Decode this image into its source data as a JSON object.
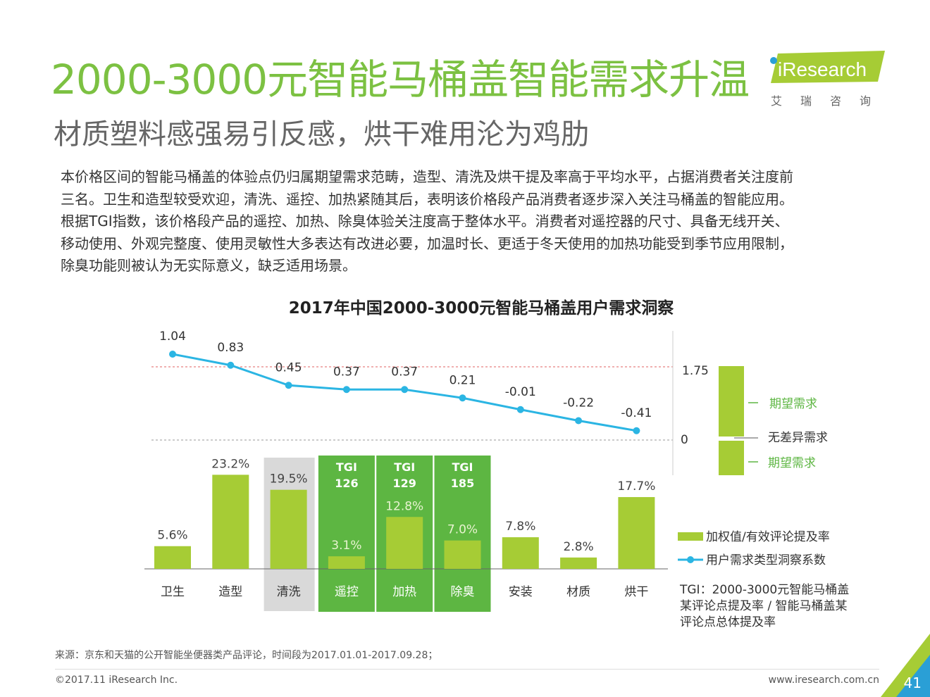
{
  "header": {
    "title": "2000-3000元智能马桶盖智能需求升温",
    "subtitle": "材质塑料感强易引反感，烘干难用沦为鸡肋",
    "logo_text": "iResearch",
    "logo_cn": "艾瑞咨询"
  },
  "body_paragraph": [
    "本价格区间的智能马桶盖的体验点仍归属期望需求范畴，造型、清洗及烘干提及率高于平均水平，占据消费者关注度前",
    "三名。卫生和造型较受欢迎，清洗、遥控、加热紧随其后，表明该价格段产品消费者逐步深入关注马桶盖的智能应用。",
    "根据TGI指数，该价格段产品的遥控、加热、除臭体验关注度高于整体水平。消费者对遥控器的尺寸、具备无线开关、",
    "移动使用、外观完整度、使用灵敏性大多表达有改进必要，加温时长、更适于冬天使用的加热功能受到季节应用限制，",
    "除臭功能则被认为无实际意义，缺乏适用场景。"
  ],
  "chart_data": {
    "type": "bar",
    "title": "2017年中国2000-3000元智能马桶盖用户需求洞察",
    "categories": [
      "卫生",
      "造型",
      "清洗",
      "遥控",
      "加热",
      "除臭",
      "安装",
      "材质",
      "烘干"
    ],
    "series": [
      {
        "name": "加权值/有效评论提及率",
        "type": "bar",
        "values": [
          5.6,
          23.2,
          19.5,
          3.1,
          12.8,
          7.0,
          7.8,
          2.8,
          17.7
        ],
        "labels": [
          "5.6%",
          "23.2%",
          "19.5%",
          "3.1%",
          "12.8%",
          "7.0%",
          "7.8%",
          "2.8%",
          "17.7%"
        ],
        "color": "#a6cc35"
      },
      {
        "name": "用户需求类型洞察系数",
        "type": "line",
        "values": [
          1.04,
          0.83,
          0.45,
          0.37,
          0.37,
          0.21,
          -0.01,
          -0.22,
          -0.41
        ],
        "labels": [
          "1.04",
          "0.83",
          "0.45",
          "0.37",
          "0.37",
          "0.21",
          "-0.01",
          "-0.22",
          "-0.41"
        ],
        "color": "#2bb5e3"
      }
    ],
    "highlight_gray": [
      "清洗"
    ],
    "highlight_green": [
      {
        "category": "遥控",
        "tgi_label": "TGI",
        "tgi_value": "126"
      },
      {
        "category": "加热",
        "tgi_label": "TGI",
        "tgi_value": "129"
      },
      {
        "category": "除臭",
        "tgi_label": "TGI",
        "tgi_value": "185"
      }
    ],
    "reference_lines": [
      1.75,
      0
    ],
    "side_scale": {
      "top_value": "1.75",
      "zero_value": "0",
      "upper_label": "期望需求",
      "middle_label": "无差异需求",
      "lower_label": "期望需求"
    },
    "tgi_note": [
      "TGI：2000-3000元智能马桶盖",
      "某评论点提及率 / 智能马桶盖某",
      "评论点总体提及率"
    ],
    "colors": {
      "bar": "#a6cc35",
      "line": "#2bb5e3",
      "highlight": "#5db642",
      "gray": "#d9d9d9",
      "ref_line": "#e06060"
    }
  },
  "footer": {
    "source": "来源：京东和天猫的公开智能坐便器类产品评论，时间段为2017.01.01-2017.09.28；",
    "copyright": "©2017.11 iResearch Inc.",
    "website": "www.iresearch.com.cn",
    "page_number": "41"
  }
}
